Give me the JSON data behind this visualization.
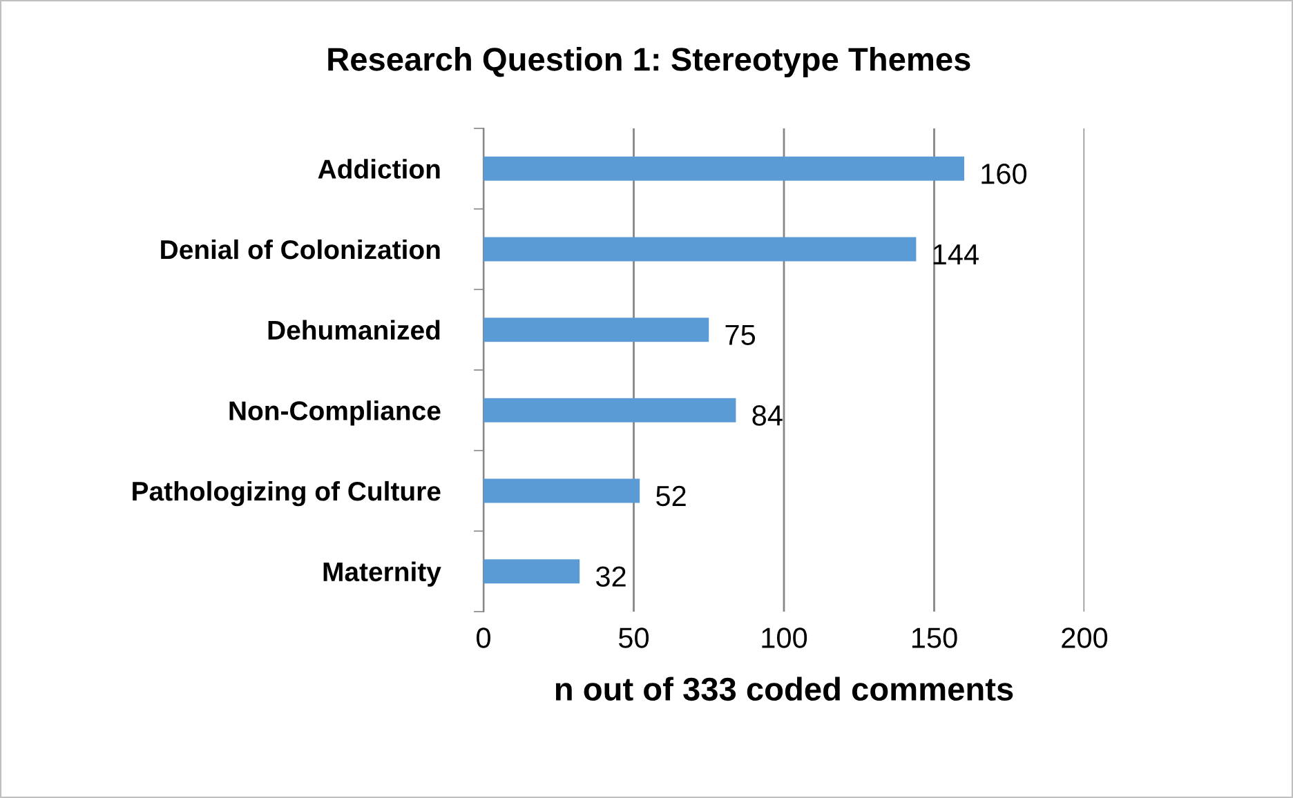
{
  "chart_data": {
    "type": "bar",
    "orientation": "horizontal",
    "title": "Research Question 1: Stereotype Themes",
    "xlabel": "n out of 333 coded comments",
    "categories": [
      "Addiction",
      "Denial of Colonization",
      "Dehumanized",
      "Non-Compliance",
      "Pathologizing of Culture",
      "Maternity"
    ],
    "values": [
      160,
      144,
      75,
      84,
      52,
      32
    ],
    "color": "#5b9bd5",
    "xlim": [
      0,
      200
    ],
    "xticks": [
      0,
      50,
      100,
      150,
      200
    ],
    "grid": "x",
    "data_labels": true,
    "legend": false
  }
}
